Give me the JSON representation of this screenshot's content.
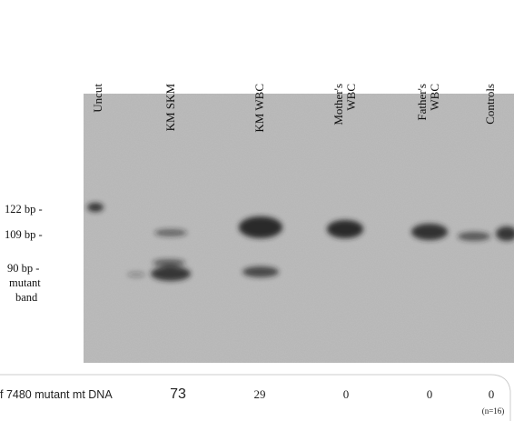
{
  "lanes": [
    {
      "lines": [
        "Uncut"
      ]
    },
    {
      "lines": [
        "KM SKM"
      ]
    },
    {
      "lines": [
        "KM WBC"
      ]
    },
    {
      "lines": [
        "Mother's",
        "WBC"
      ]
    },
    {
      "lines": [
        "Father's",
        "WBC"
      ]
    },
    {
      "lines": [
        "Controls"
      ]
    }
  ],
  "band_labels": [
    "122 bp -",
    "109 bp -",
    "90 bp  -",
    "mutant",
    "band"
  ],
  "row": {
    "label": "f 7480 mutant mt DNA",
    "values": [
      "73",
      "29",
      "0",
      "0",
      "0"
    ],
    "note": "(n=16)"
  }
}
